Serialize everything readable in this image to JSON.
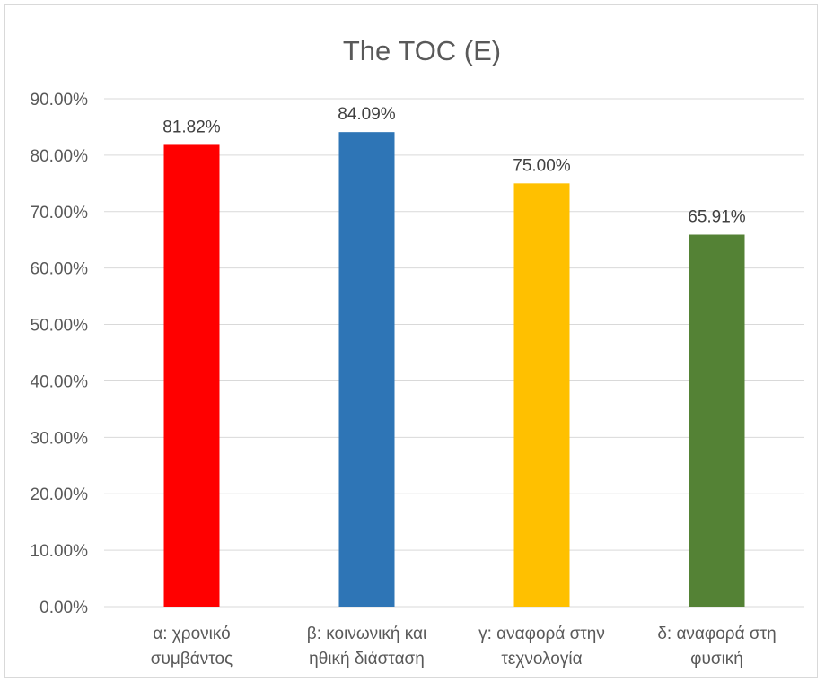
{
  "chart_data": {
    "type": "bar",
    "title": "The TOC (E)",
    "categories": [
      [
        "α: χρονικό",
        "συμβάντος"
      ],
      [
        "β: κοινωνική και",
        "ηθική διάσταση"
      ],
      [
        "γ: αναφορά στην",
        "τεχνολογία"
      ],
      [
        "δ: αναφορά στη",
        "φυσική"
      ]
    ],
    "values": [
      81.82,
      84.09,
      75.0,
      65.91
    ],
    "data_labels": [
      "81.82%",
      "84.09%",
      "75.00%",
      "65.91%"
    ],
    "colors": [
      "#ff0000",
      "#2e75b6",
      "#ffc000",
      "#548235"
    ],
    "ylim": [
      0,
      90
    ],
    "yticks": [
      0,
      10,
      20,
      30,
      40,
      50,
      60,
      70,
      80,
      90
    ],
    "ytick_labels": [
      "0.00%",
      "10.00%",
      "20.00%",
      "30.00%",
      "40.00%",
      "50.00%",
      "60.00%",
      "70.00%",
      "80.00%",
      "90.00%"
    ],
    "xlabel": "",
    "ylabel": "",
    "grid": true,
    "legend": "none"
  }
}
